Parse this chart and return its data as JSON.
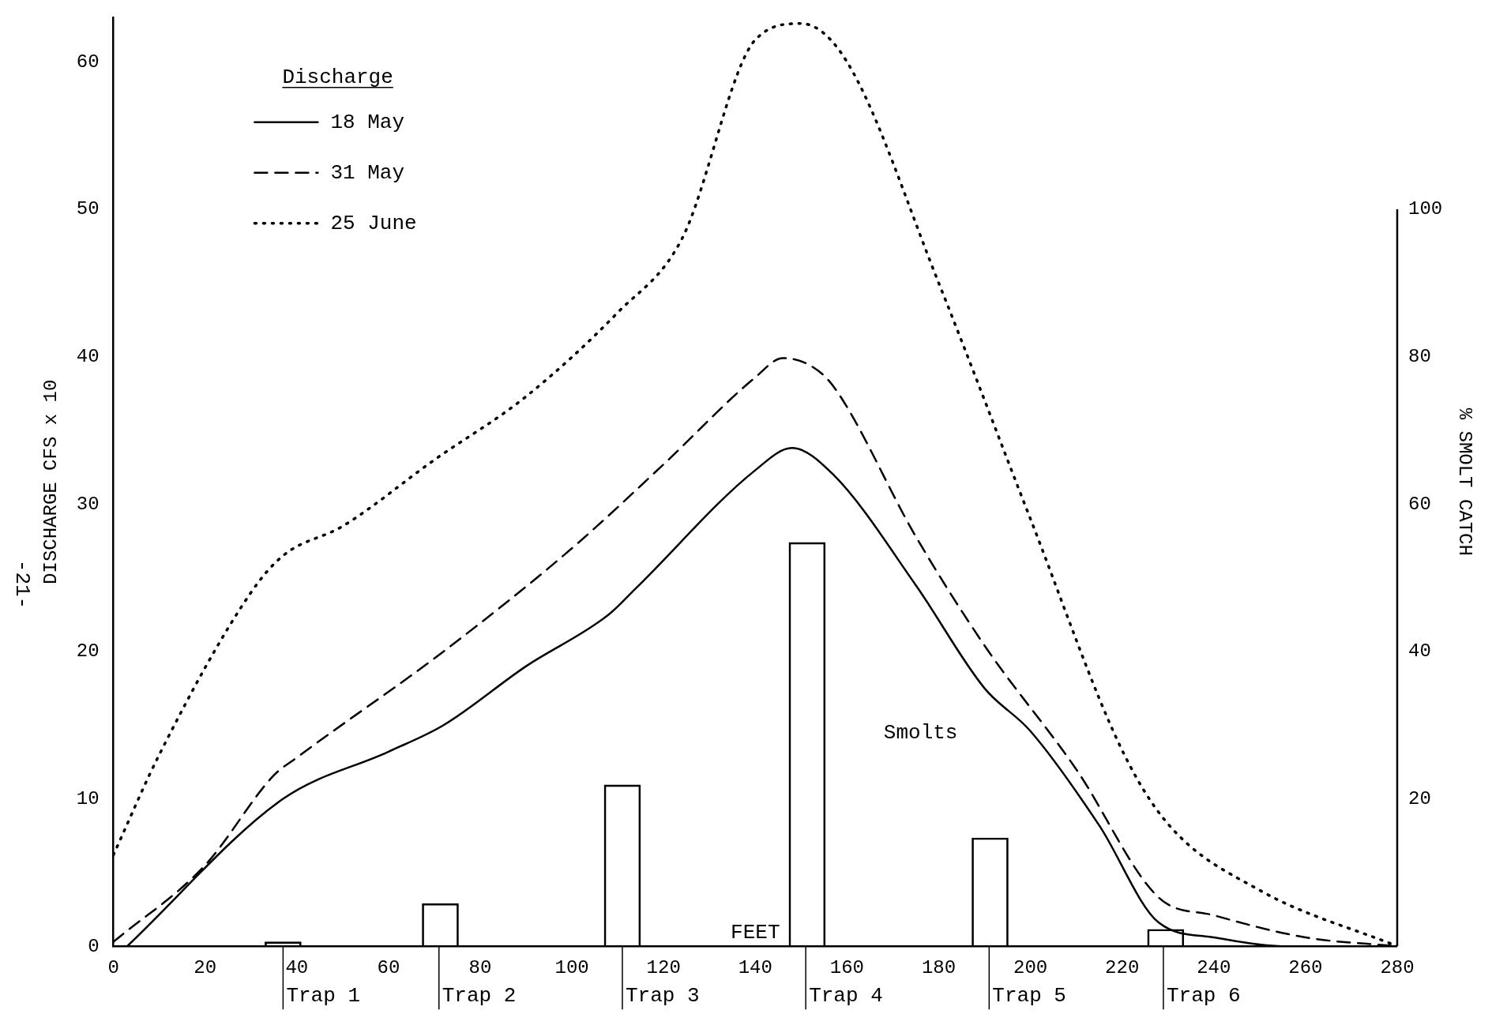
{
  "chart_data": {
    "type": "line",
    "xlabel": "FEET",
    "ylabel": "DISCHARGE CFS x 10",
    "y2label": "% SMOLT CATCH",
    "legend_title": "Discharge",
    "xlim": [
      0,
      280
    ],
    "xticks": [
      0,
      20,
      40,
      60,
      80,
      100,
      120,
      140,
      160,
      180,
      200,
      220,
      240,
      260,
      280
    ],
    "ylim": [
      0,
      63
    ],
    "yticks": [
      0,
      10,
      20,
      30,
      40,
      50,
      60
    ],
    "y2lim": [
      0,
      126
    ],
    "y2ticks": [
      20,
      40,
      60,
      80,
      100
    ],
    "grid": false,
    "legend": "top left",
    "marker": "none",
    "series": [
      {
        "name": "18 May",
        "color": "#000000",
        "line_style": "solid",
        "x": [
          3,
          37,
          60,
          72,
          90,
          108,
          114,
          140,
          148,
          157,
          175,
          190,
          200,
          215,
          228,
          240,
          255,
          275
        ],
        "values": [
          0,
          10,
          13.2,
          15,
          19,
          22.5,
          24.3,
          32.3,
          33.8,
          32,
          24.5,
          17.5,
          14.6,
          8.2,
          1.6,
          0.6,
          0,
          0
        ]
      },
      {
        "name": "31 May",
        "color": "#000000",
        "line_style": "dashed",
        "x": [
          0,
          20,
          35,
          40,
          72,
          100,
          120,
          140,
          146,
          152,
          157,
          175,
          190,
          210,
          228,
          240,
          260,
          280
        ],
        "values": [
          0.3,
          5.5,
          11.6,
          12.8,
          20,
          27,
          32.7,
          38.6,
          39.9,
          39.4,
          38,
          27.8,
          20.4,
          12,
          3.3,
          2.1,
          0.6,
          0
        ]
      },
      {
        "name": "25 June",
        "color": "#000000",
        "line_style": "dotted",
        "x": [
          0,
          10,
          30,
          37,
          50,
          70,
          90,
          110,
          124,
          140,
          150,
          160,
          180,
          200,
          220,
          230,
          250,
          280
        ],
        "values": [
          6.2,
          13,
          24,
          26.5,
          28.5,
          33,
          37.3,
          43,
          48,
          61.5,
          62.6,
          60,
          45,
          29,
          13.3,
          8.3,
          3.8,
          0
        ]
      },
      {
        "type": "bar",
        "axis": "y2",
        "color": "#000000",
        "x": [
          37,
          71.3,
          111,
          151.3,
          191.2,
          229.5
        ],
        "values": [
          0.6,
          5.8,
          21.9,
          54.8,
          14.7,
          2.3
        ]
      }
    ],
    "annotations": [
      {
        "text": "Trap 1",
        "x": 37,
        "y": 0
      },
      {
        "text": "Trap 2",
        "x": 71,
        "y": 0
      },
      {
        "text": "Trap 3",
        "x": 111,
        "y": 0
      },
      {
        "text": "Trap 4",
        "x": 151,
        "y": 0
      },
      {
        "text": "Trap 5",
        "x": 191,
        "y": 0
      },
      {
        "text": "Trap 6",
        "x": 229,
        "y": 0
      },
      "Smolts",
      "-21-"
    ]
  }
}
